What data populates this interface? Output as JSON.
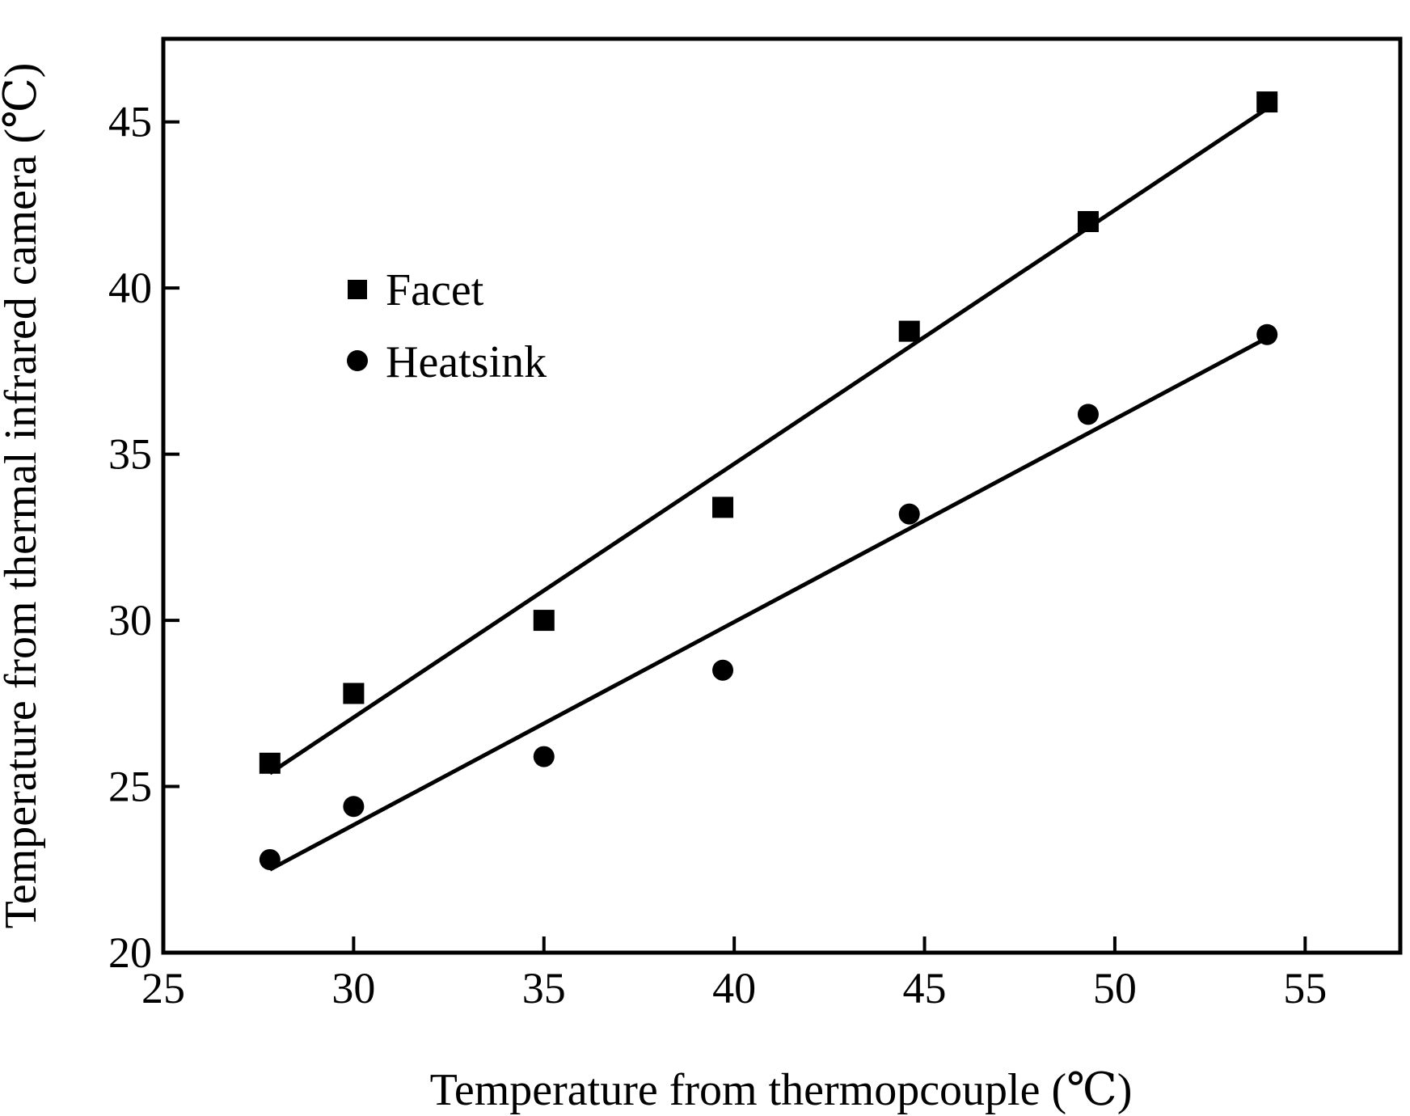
{
  "chart_data": {
    "type": "scatter",
    "title": "",
    "xlabel": "Temperature from thermopcouple (℃)",
    "ylabel": "Temperature from thermal infrared camera (℃)",
    "xlim": [
      25,
      57.5
    ],
    "ylim": [
      20,
      47.5
    ],
    "xticks": [
      25,
      30,
      35,
      40,
      45,
      50,
      55
    ],
    "yticks": [
      20,
      25,
      30,
      35,
      40,
      45
    ],
    "xtick_labels": [
      "25",
      "30",
      "35",
      "40",
      "45",
      "50",
      "55"
    ],
    "ytick_labels": [
      "20",
      "25",
      "30",
      "35",
      "40",
      "45"
    ],
    "grid": false,
    "legend_position": "upper-left",
    "series": [
      {
        "name": "Facet",
        "marker": "square",
        "color": "#000000",
        "x": [
          27.8,
          30.0,
          35.0,
          39.7,
          44.6,
          49.3,
          54.0
        ],
        "y": [
          25.7,
          27.8,
          30.0,
          33.4,
          38.7,
          42.0,
          45.6
        ],
        "fit": {
          "x": [
            27.8,
            54.0
          ],
          "y": [
            25.4,
            45.4
          ]
        }
      },
      {
        "name": "Heatsink",
        "marker": "circle",
        "color": "#000000",
        "x": [
          27.8,
          30.0,
          35.0,
          39.7,
          44.6,
          49.3,
          54.0
        ],
        "y": [
          22.8,
          24.4,
          25.9,
          28.5,
          33.2,
          36.2,
          38.6
        ],
        "fit": {
          "x": [
            27.8,
            54.0
          ],
          "y": [
            22.5,
            38.5
          ]
        }
      }
    ]
  }
}
